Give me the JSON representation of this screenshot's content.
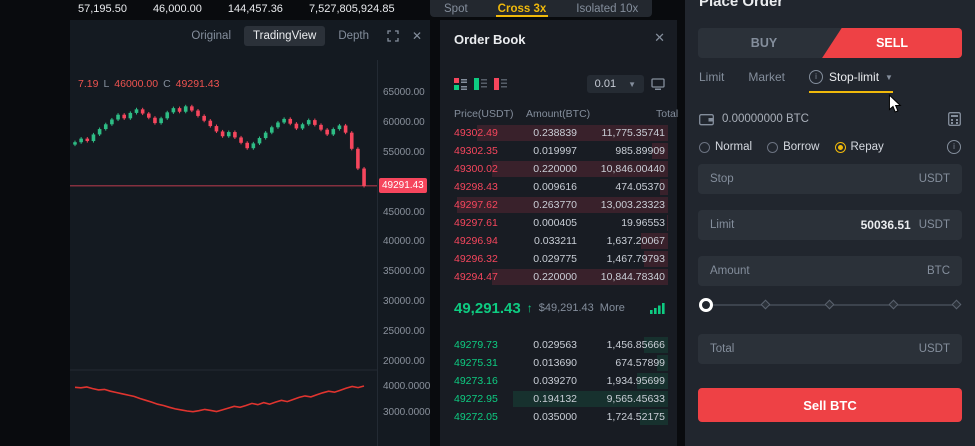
{
  "ticker": {
    "values": [
      "57,195.50",
      "46,000.00",
      "144,457.36",
      "7,527,805,924.85"
    ]
  },
  "market_tabs": {
    "items": [
      {
        "label": "Spot",
        "active": false
      },
      {
        "label": "Cross 3x",
        "active": true
      },
      {
        "label": "Isolated 10x",
        "active": false
      }
    ]
  },
  "chart": {
    "tabs": [
      {
        "label": "Original",
        "active": false
      },
      {
        "label": "TradingView",
        "active": true
      },
      {
        "label": "Depth",
        "active": false
      }
    ],
    "legend": {
      "o_value": "7.19",
      "l_label": "L",
      "l_value": "46000.00",
      "c_label": "C",
      "c_value": "49291.43"
    },
    "last_price": "49291.43",
    "y_axis_main": [
      "65000.00",
      "60000.00",
      "55000.00",
      "45000.00",
      "40000.00",
      "35000.00",
      "30000.00",
      "25000.00",
      "20000.00"
    ],
    "y_axis_sub": [
      "4000.0000",
      "3000.0000"
    ],
    "chart_data": {
      "type": "candlestick+line",
      "main_range": [
        20000,
        65000
      ],
      "sub_range": [
        3000,
        4000
      ],
      "first_open": 56200,
      "last_price_value": 49291.43,
      "candles_close": [
        56600,
        57200,
        56800,
        57900,
        58800,
        59600,
        60400,
        61200,
        60600,
        61500,
        62100,
        61400,
        60700,
        59800,
        60600,
        61600,
        62300,
        61700,
        62600,
        61900,
        61000,
        60200,
        59300,
        58400,
        57600,
        58300,
        57400,
        56500,
        55600,
        56400,
        57300,
        58200,
        59100,
        59900,
        60500,
        59700,
        58900,
        59600,
        60300,
        59500,
        58700,
        57900,
        58800,
        59400,
        58200,
        55500,
        52200,
        49291
      ],
      "indicator_line": [
        3950,
        3930,
        3960,
        3900,
        3850,
        3870,
        3800,
        3750,
        3700,
        3650,
        3600,
        3520,
        3450,
        3380,
        3300,
        3250,
        3180,
        3120,
        3080,
        3040,
        3010,
        3050,
        3100,
        3060,
        3020,
        3080,
        3150,
        3220,
        3180,
        3250,
        3330,
        3280,
        3360,
        3300,
        3380,
        3450,
        3400,
        3480,
        3560,
        3620,
        3580,
        3660,
        3740,
        3800,
        3760,
        3840,
        3920,
        3980,
        3940,
        4000
      ]
    }
  },
  "order_book": {
    "title": "Order Book",
    "close_glyph": "✕",
    "precision": "0.01",
    "columns": [
      "Price(USDT)",
      "Amount(BTC)",
      "Total"
    ],
    "asks": [
      {
        "price": "49302.49",
        "amount": "0.238839",
        "total": "11,775.35741"
      },
      {
        "price": "49302.35",
        "amount": "0.019997",
        "total": "985.89909"
      },
      {
        "price": "49300.02",
        "amount": "0.220000",
        "total": "10,846.00440"
      },
      {
        "price": "49298.43",
        "amount": "0.009616",
        "total": "474.05370"
      },
      {
        "price": "49297.62",
        "amount": "0.263770",
        "total": "13,003.23323"
      },
      {
        "price": "49297.61",
        "amount": "0.000405",
        "total": "19.96553"
      },
      {
        "price": "49296.94",
        "amount": "0.033211",
        "total": "1,637.20067"
      },
      {
        "price": "49296.32",
        "amount": "0.029775",
        "total": "1,467.79793"
      },
      {
        "price": "49294.47",
        "amount": "0.220000",
        "total": "10,844.78340"
      }
    ],
    "mid": {
      "price": "49,291.43",
      "direction": "↑",
      "usd": "$49,291.43",
      "more_label": "More"
    },
    "bids": [
      {
        "price": "49279.73",
        "amount": "0.029563",
        "total": "1,456.85666"
      },
      {
        "price": "49275.31",
        "amount": "0.013690",
        "total": "674.57899"
      },
      {
        "price": "49273.16",
        "amount": "0.039270",
        "total": "1,934.95699"
      },
      {
        "price": "49272.95",
        "amount": "0.194132",
        "total": "9,565.45633"
      },
      {
        "price": "49272.05",
        "amount": "0.035000",
        "total": "1,724.52175"
      }
    ]
  },
  "place_order": {
    "title": "Place Order",
    "side_tabs": {
      "buy": "BUY",
      "sell": "SELL",
      "active": "sell"
    },
    "order_type_tabs": [
      {
        "label": "Limit",
        "active": false,
        "has_info": false,
        "has_caret": false
      },
      {
        "label": "Market",
        "active": false,
        "has_info": false,
        "has_caret": false
      },
      {
        "label": "Stop-limit",
        "active": true,
        "has_info": true,
        "has_caret": true
      }
    ],
    "balance": "0.00000000 BTC",
    "margin_modes": [
      {
        "label": "Normal",
        "selected": false
      },
      {
        "label": "Borrow",
        "selected": false
      },
      {
        "label": "Repay",
        "selected": true
      }
    ],
    "fields": {
      "stop": {
        "label": "Stop",
        "value": "",
        "suffix": "USDT"
      },
      "limit": {
        "label": "Limit",
        "value": "50036.51",
        "suffix": "USDT"
      },
      "amount": {
        "label": "Amount",
        "value": "",
        "suffix": "BTC"
      },
      "total": {
        "label": "Total",
        "value": "",
        "suffix": "USDT"
      }
    },
    "submit_label": "Sell BTC"
  },
  "colors": {
    "accent_yellow": "#f0b90b",
    "sell_red": "#ee4145",
    "ask_red": "#f6465d",
    "bid_green": "#0ecb81",
    "up_candle": "#2ebd85",
    "down_candle": "#f6465d"
  }
}
